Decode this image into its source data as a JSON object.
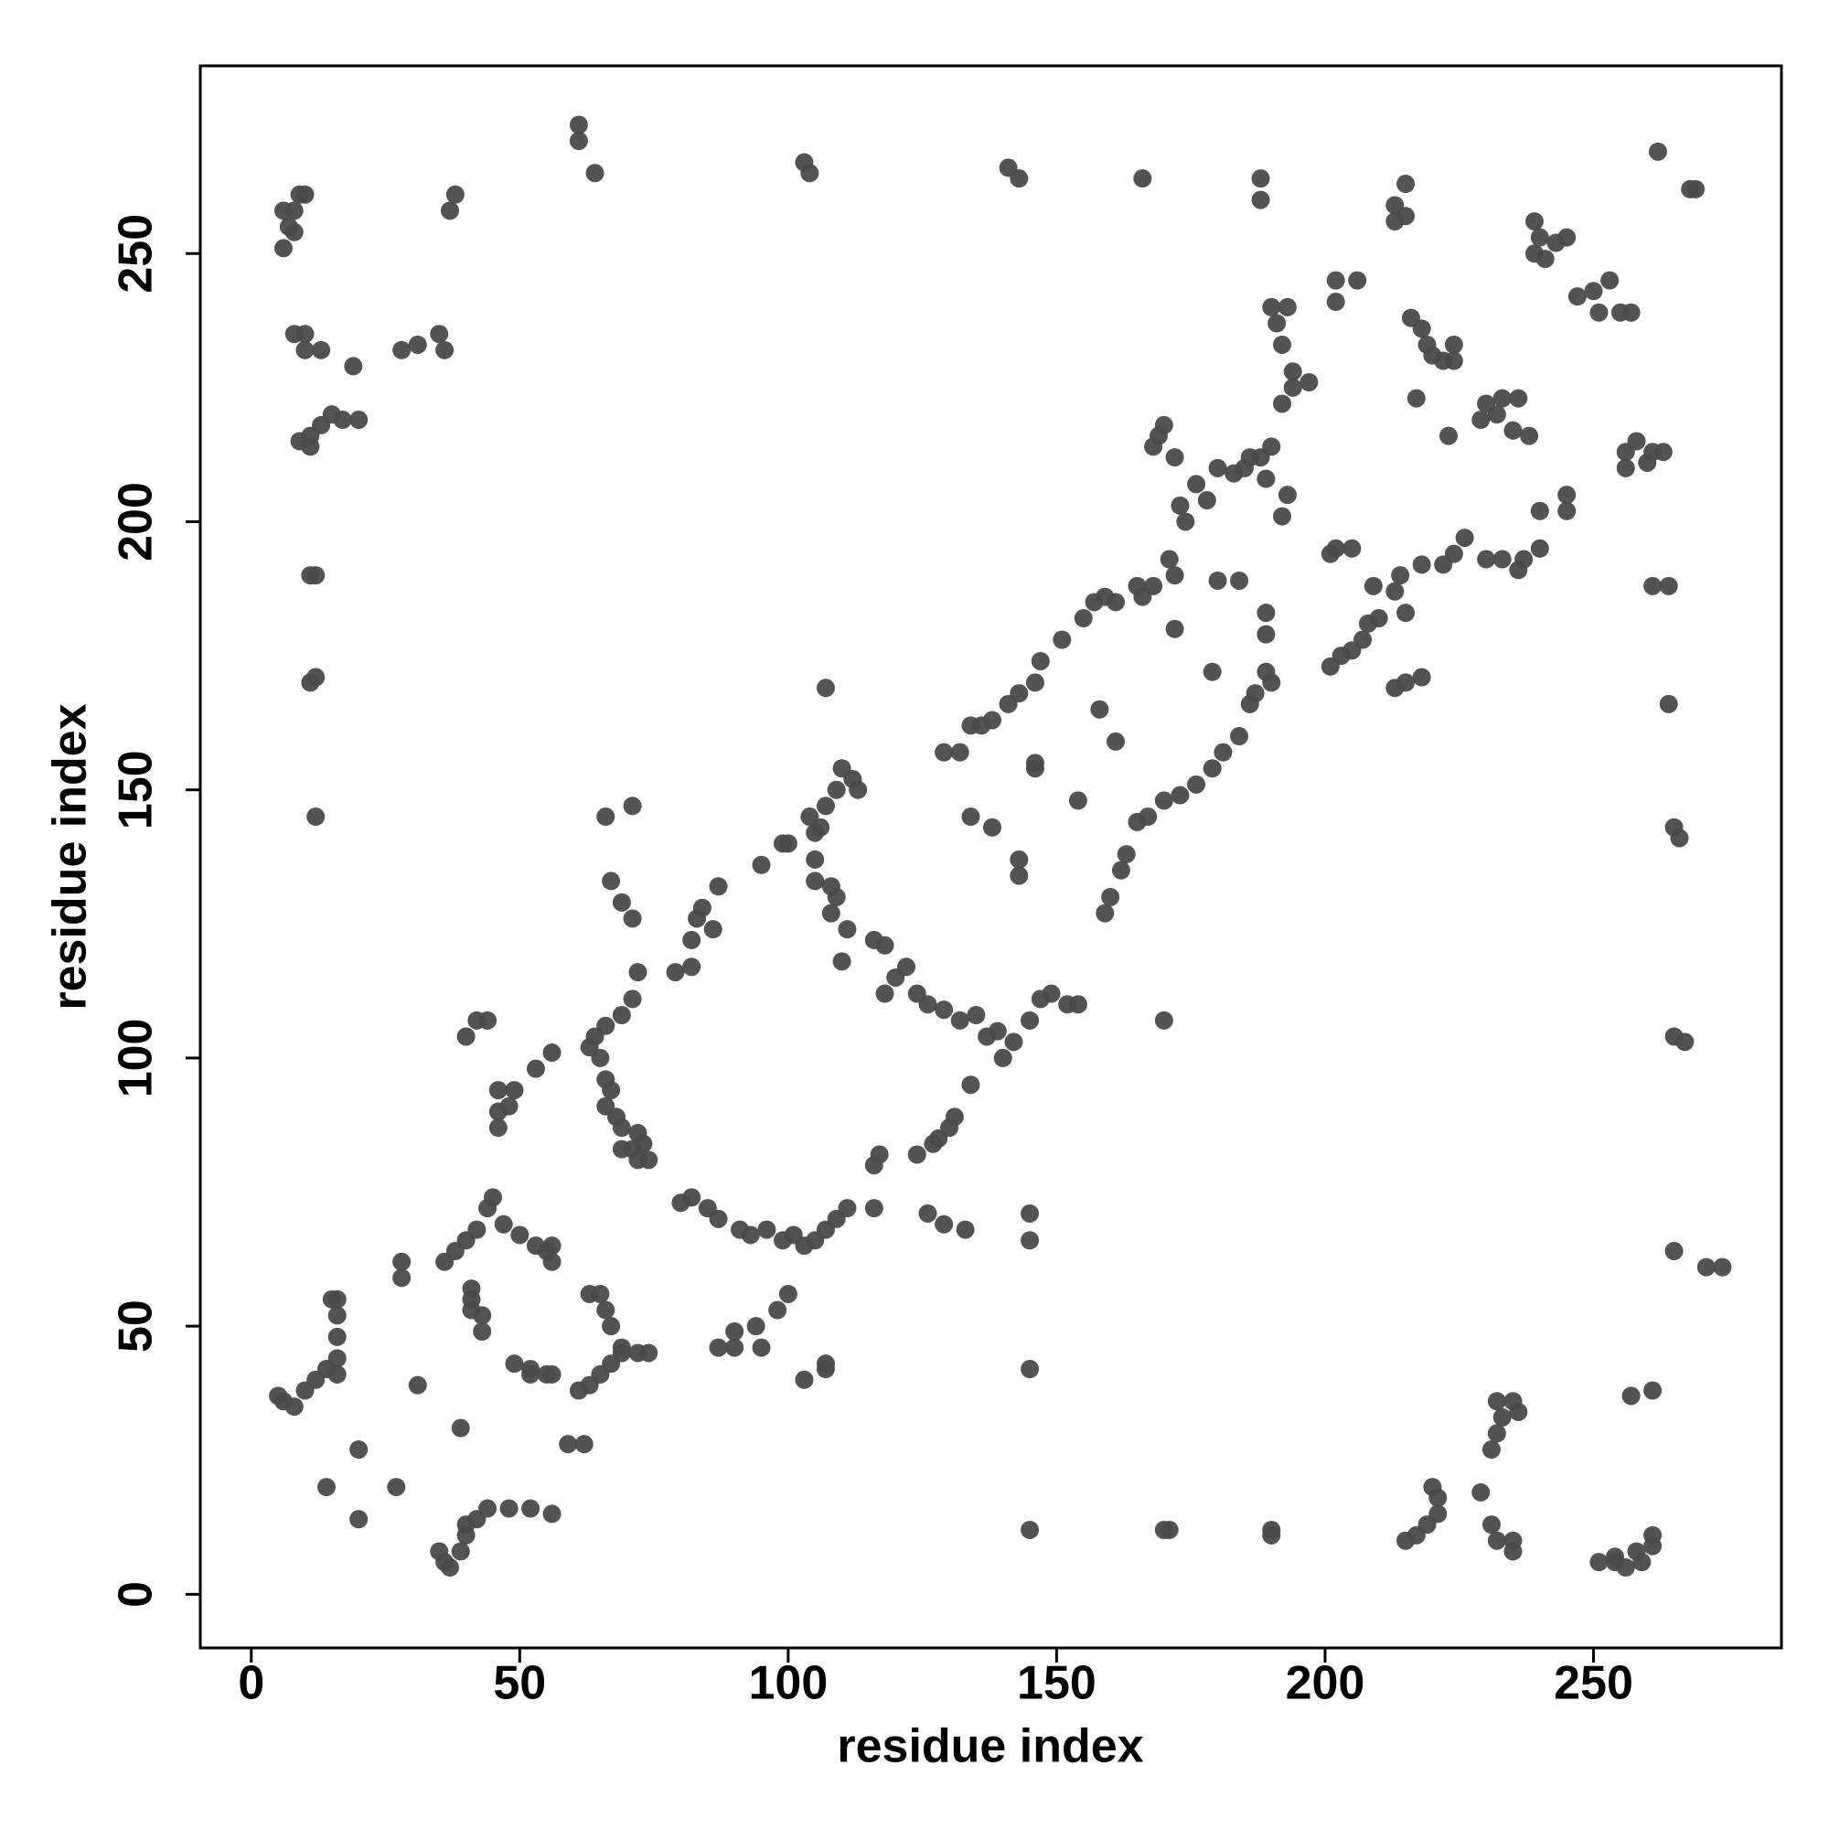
{
  "chart_data": {
    "type": "scatter",
    "x_label": "residue index",
    "y_label": "residue index",
    "color": "#4a4a4a",
    "xlim": [
      -9.5,
      285
    ],
    "ylim": [
      -10,
      285
    ],
    "xticks": [
      0,
      50,
      100,
      150,
      200,
      250
    ],
    "yticks": [
      0,
      50,
      100,
      150,
      200,
      250
    ],
    "x": [
      6,
      7,
      8,
      9,
      10,
      6,
      8,
      8,
      10,
      10,
      13,
      19,
      9,
      11,
      13,
      15,
      17,
      20,
      11,
      12,
      11,
      12,
      11,
      12,
      28,
      31,
      35,
      36,
      38,
      37,
      61,
      61,
      64,
      103,
      104,
      141,
      143,
      166,
      188,
      188,
      213,
      215,
      213,
      215,
      239,
      240,
      243,
      245,
      241,
      239,
      247,
      250,
      253,
      255,
      257,
      251,
      262,
      269,
      268,
      202,
      206,
      202,
      190,
      193,
      191,
      192,
      194,
      194,
      197,
      192,
      216,
      218,
      219,
      220,
      222,
      224,
      224,
      217,
      230,
      232,
      233,
      236,
      235,
      238,
      229,
      223,
      170,
      169,
      168,
      172,
      176,
      180,
      183,
      185,
      186,
      188,
      190,
      189,
      192,
      193,
      173,
      178,
      174,
      202,
      205,
      201,
      172,
      171,
      168,
      166,
      180,
      184,
      165,
      161,
      157,
      159,
      155,
      151,
      147,
      146,
      143,
      141,
      138,
      136,
      134,
      132,
      129,
      245,
      245,
      240,
      240,
      237,
      236,
      233,
      230,
      224,
      222,
      226,
      218,
      214,
      213,
      215,
      210,
      208,
      207,
      205,
      203,
      201,
      209,
      189,
      189,
      189,
      190,
      187,
      186,
      184,
      181,
      179,
      176,
      173,
      170,
      167,
      165,
      163,
      162,
      160,
      159,
      158,
      161,
      179,
      172,
      154,
      146,
      146,
      134,
      138,
      143,
      143,
      170,
      213,
      215,
      218,
      256,
      258,
      261,
      263,
      256,
      260,
      261,
      264,
      264,
      265,
      266,
      265,
      267,
      265,
      271,
      274,
      261,
      257,
      107,
      104,
      107,
      109,
      110,
      112,
      113,
      100,
      106,
      105,
      105,
      108,
      109,
      108,
      111,
      110,
      116,
      118,
      122,
      120,
      118,
      124,
      126,
      129,
      132,
      135,
      139,
      142,
      145,
      147,
      149,
      152,
      154,
      137,
      140,
      134,
      130,
      131,
      127,
      124,
      128,
      117,
      116,
      95,
      87,
      84,
      86,
      83,
      82,
      79,
      82,
      72,
      71,
      69,
      66,
      64,
      63,
      65,
      66,
      67,
      66,
      68,
      69,
      72,
      73,
      71,
      69,
      72,
      74,
      66,
      71,
      67,
      69,
      71,
      80,
      82,
      85,
      87,
      91,
      93,
      96,
      99,
      101,
      103,
      105,
      107,
      109,
      111,
      100,
      98,
      94,
      90,
      90,
      87,
      95,
      116,
      126,
      129,
      133,
      145,
      145,
      145,
      103,
      107,
      107,
      40,
      42,
      44,
      46,
      46,
      46,
      49,
      48,
      53,
      56,
      36,
      38,
      40,
      42,
      44,
      45,
      47,
      41,
      41,
      41,
      43,
      43,
      50,
      53,
      55,
      56,
      56,
      49,
      52,
      52,
      55,
      56,
      61,
      63,
      65,
      67,
      69,
      72,
      74,
      63,
      65,
      66,
      67,
      69,
      59,
      62,
      28,
      28,
      31,
      20,
      20,
      14,
      27,
      39,
      5,
      6,
      8,
      10,
      12,
      14,
      16,
      16,
      16,
      16,
      16,
      15,
      35,
      36,
      37,
      39,
      40,
      42,
      44,
      48,
      52,
      56,
      40,
      145,
      170,
      171,
      190,
      190,
      215,
      217,
      219,
      221,
      221,
      220,
      229,
      231,
      232,
      235,
      235,
      231,
      232,
      233,
      235,
      236,
      232,
      251,
      254,
      256,
      258,
      259,
      261,
      261,
      254,
      99,
      105
    ],
    "values": [
      258,
      255,
      258,
      261,
      261,
      251,
      254,
      235,
      235,
      232,
      232,
      229,
      215,
      216,
      218,
      220,
      219,
      219,
      214,
      190,
      190,
      171,
      170,
      145,
      232,
      233,
      235,
      232,
      261,
      258,
      274,
      271,
      265,
      267,
      265,
      266,
      264,
      264,
      264,
      260,
      259,
      263,
      256,
      257,
      256,
      253,
      252,
      253,
      249,
      250,
      242,
      243,
      245,
      239,
      239,
      239,
      269,
      262,
      262,
      245,
      245,
      241,
      240,
      240,
      237,
      233,
      228,
      225,
      226,
      222,
      238,
      236,
      233,
      231,
      230,
      233,
      230,
      223,
      222,
      220,
      223,
      223,
      217,
      216,
      219,
      216,
      218,
      216,
      214,
      212,
      207,
      210,
      209,
      210,
      212,
      212,
      214,
      208,
      201,
      205,
      203,
      204,
      200,
      195,
      195,
      194,
      190,
      193,
      188,
      186,
      189,
      189,
      188,
      185,
      185,
      186,
      182,
      178,
      174,
      170,
      168,
      166,
      163,
      162,
      162,
      157,
      157,
      205,
      202,
      202,
      195,
      193,
      191,
      193,
      193,
      194,
      192,
      197,
      192,
      190,
      187,
      183,
      182,
      181,
      178,
      176,
      175,
      173,
      188,
      183,
      179,
      172,
      170,
      168,
      166,
      160,
      157,
      154,
      151,
      149,
      148,
      145,
      144,
      138,
      135,
      130,
      127,
      165,
      159,
      172,
      180,
      148,
      155,
      154,
      145,
      143,
      137,
      134,
      107,
      169,
      170,
      171,
      213,
      215,
      213,
      213,
      210,
      211,
      188,
      188,
      166,
      143,
      141,
      104,
      103,
      64,
      61,
      61,
      38,
      37,
      169,
      145,
      147,
      150,
      154,
      152,
      150,
      140,
      143,
      137,
      133,
      132,
      130,
      127,
      124,
      118,
      122,
      121,
      117,
      115,
      112,
      112,
      110,
      109,
      107,
      108,
      105,
      103,
      107,
      111,
      112,
      110,
      110,
      104,
      100,
      95,
      87,
      89,
      84,
      82,
      85,
      82,
      80,
      136,
      132,
      128,
      124,
      126,
      122,
      116,
      117,
      116,
      111,
      108,
      106,
      104,
      102,
      100,
      96,
      94,
      91,
      89,
      87,
      86,
      84,
      83,
      83,
      81,
      81,
      145,
      147,
      133,
      129,
      126,
      73,
      74,
      72,
      70,
      68,
      67,
      68,
      66,
      67,
      65,
      66,
      68,
      70,
      72,
      56,
      53,
      50,
      49,
      46,
      46,
      46,
      72,
      71,
      69,
      68,
      71,
      66,
      42,
      40,
      43,
      42,
      104,
      107,
      107,
      94,
      90,
      87,
      94,
      91,
      98,
      101,
      62,
      64,
      66,
      68,
      72,
      74,
      69,
      57,
      55,
      53,
      52,
      49,
      67,
      65,
      64,
      62,
      65,
      43,
      42,
      41,
      41,
      41,
      38,
      39,
      41,
      43,
      45,
      45,
      45,
      56,
      56,
      53,
      50,
      46,
      28,
      28,
      62,
      59,
      39,
      27,
      14,
      20,
      20,
      31,
      37,
      36,
      35,
      38,
      40,
      42,
      44,
      41,
      48,
      52,
      55,
      55,
      8,
      6,
      5,
      8,
      11,
      14,
      16,
      16,
      16,
      15,
      13,
      12,
      12,
      12,
      12,
      11,
      10,
      11,
      13,
      15,
      18,
      20,
      19,
      13,
      10,
      10,
      8,
      27,
      30,
      33,
      36,
      34,
      36,
      6,
      7,
      5,
      8,
      6,
      11,
      9,
      6,
      140,
      142
    ]
  }
}
